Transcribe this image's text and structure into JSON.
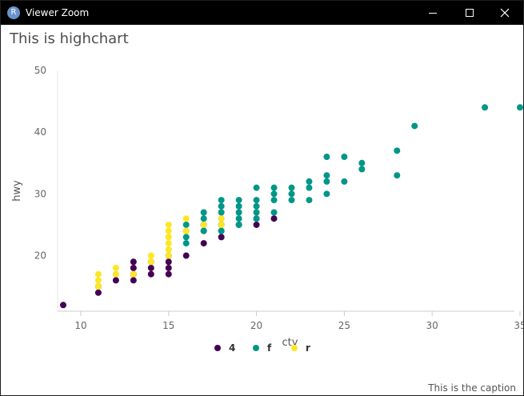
{
  "window": {
    "title": "Viewer Zoom",
    "icon_letter": "R",
    "icons": [
      "minimize-icon",
      "maximize-icon",
      "close-icon"
    ]
  },
  "chart_data": {
    "type": "scatter",
    "title": "This is highchart",
    "caption": "This is the caption",
    "xlabel": "cty",
    "ylabel": "hwy",
    "xlim": [
      9,
      35
    ],
    "ylim": [
      11,
      50
    ],
    "xticks": [
      10,
      15,
      20,
      25,
      30,
      35
    ],
    "yticks": [
      20,
      30,
      40,
      50
    ],
    "grid": false,
    "legend_position": "bottom-center",
    "series": [
      {
        "name": "4",
        "color": "#440154",
        "points": [
          [
            9,
            12
          ],
          [
            11,
            14
          ],
          [
            11,
            15
          ],
          [
            12,
            16
          ],
          [
            13,
            16
          ],
          [
            13,
            17
          ],
          [
            13,
            18
          ],
          [
            13,
            19
          ],
          [
            14,
            17
          ],
          [
            14,
            18
          ],
          [
            14,
            19
          ],
          [
            15,
            17
          ],
          [
            15,
            18
          ],
          [
            15,
            19
          ],
          [
            15,
            20
          ],
          [
            16,
            20
          ],
          [
            17,
            22
          ],
          [
            17,
            24
          ],
          [
            17,
            25
          ],
          [
            18,
            23
          ],
          [
            18,
            24
          ],
          [
            18,
            25
          ],
          [
            19,
            25
          ],
          [
            20,
            25
          ],
          [
            20,
            26
          ],
          [
            21,
            26
          ]
        ]
      },
      {
        "name": "f",
        "color": "#009688",
        "points": [
          [
            16,
            22
          ],
          [
            16,
            23
          ],
          [
            16,
            24
          ],
          [
            16,
            25
          ],
          [
            17,
            24
          ],
          [
            17,
            26
          ],
          [
            17,
            27
          ],
          [
            18,
            24
          ],
          [
            18,
            25
          ],
          [
            18,
            26
          ],
          [
            18,
            27
          ],
          [
            18,
            28
          ],
          [
            18,
            29
          ],
          [
            19,
            25
          ],
          [
            19,
            26
          ],
          [
            19,
            27
          ],
          [
            19,
            28
          ],
          [
            19,
            29
          ],
          [
            20,
            26
          ],
          [
            20,
            27
          ],
          [
            20,
            28
          ],
          [
            20,
            29
          ],
          [
            20,
            31
          ],
          [
            21,
            27
          ],
          [
            21,
            29
          ],
          [
            21,
            30
          ],
          [
            21,
            31
          ],
          [
            22,
            29
          ],
          [
            22,
            30
          ],
          [
            22,
            31
          ],
          [
            23,
            29
          ],
          [
            23,
            31
          ],
          [
            23,
            32
          ],
          [
            24,
            30
          ],
          [
            24,
            32
          ],
          [
            24,
            33
          ],
          [
            24,
            36
          ],
          [
            25,
            32
          ],
          [
            25,
            36
          ],
          [
            26,
            34
          ],
          [
            26,
            35
          ],
          [
            28,
            33
          ],
          [
            28,
            37
          ],
          [
            29,
            41
          ],
          [
            33,
            44
          ],
          [
            35,
            44
          ]
        ]
      },
      {
        "name": "r",
        "color": "#fde725",
        "points": [
          [
            11,
            15
          ],
          [
            11,
            16
          ],
          [
            11,
            17
          ],
          [
            12,
            17
          ],
          [
            12,
            18
          ],
          [
            13,
            17
          ],
          [
            14,
            19
          ],
          [
            14,
            20
          ],
          [
            15,
            20
          ],
          [
            15,
            21
          ],
          [
            15,
            22
          ],
          [
            15,
            23
          ],
          [
            15,
            24
          ],
          [
            15,
            25
          ],
          [
            16,
            24
          ],
          [
            16,
            26
          ],
          [
            17,
            25
          ],
          [
            18,
            25
          ],
          [
            18,
            26
          ]
        ]
      }
    ]
  }
}
